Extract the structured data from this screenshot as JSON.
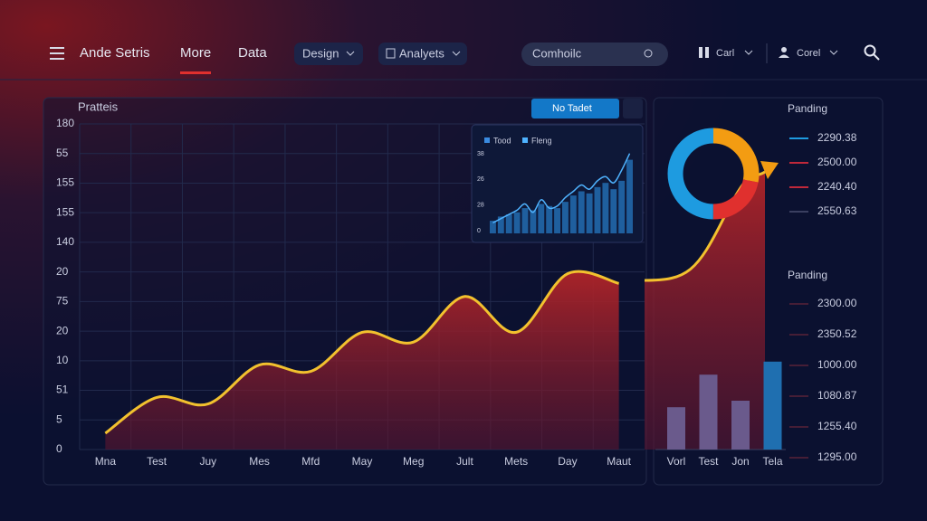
{
  "nav": {
    "brand": "Ande Setris",
    "items": [
      "More",
      "Data"
    ],
    "dropdowns": [
      "Design",
      "Analyets"
    ],
    "search": "Comhoilc",
    "menus": [
      "Carl",
      "Corel"
    ]
  },
  "main_panel": {
    "title": "Pratteis",
    "button": "No Tadet",
    "chart_data": {
      "type": "line",
      "categories": [
        "Mna",
        "Test",
        "Juy",
        "Mes",
        "Mfd",
        "May",
        "Meg",
        "Jult",
        "Mets",
        "Day",
        "Maut"
      ],
      "values": [
        5,
        16,
        14,
        26,
        24,
        36,
        33,
        47,
        36,
        54,
        51
      ],
      "color": "#f2c12e",
      "area_color": "#b02428",
      "ylim": [
        0,
        100
      ],
      "y_labels": [
        "180",
        "55",
        "155",
        "155",
        "140",
        "20",
        "75",
        "20",
        "10",
        "51",
        "5",
        "0"
      ]
    }
  },
  "inset": {
    "legend": [
      "Tood",
      "Fleng"
    ],
    "y_labels": [
      "38",
      "26",
      "28",
      "0"
    ],
    "chart_data": {
      "type": "bar",
      "ylim": [
        0,
        40
      ],
      "series": [
        {
          "name": "Tood",
          "color": "#1f5f9e",
          "values": [
            6,
            8,
            9,
            10,
            12,
            11,
            14,
            13,
            12,
            15,
            18,
            20,
            19,
            22,
            24,
            21,
            25,
            35
          ]
        },
        {
          "name": "Fleng",
          "color": "#4fb3ff",
          "values": [
            5,
            7,
            9,
            11,
            14,
            10,
            16,
            12,
            13,
            17,
            20,
            23,
            21,
            25,
            27,
            24,
            30,
            38
          ]
        }
      ]
    }
  },
  "side_panel": {
    "donut": {
      "type": "pie",
      "values": [
        28,
        22,
        50
      ],
      "colors": [
        "#f39c12",
        "#e0302e",
        "#1e9be0"
      ]
    },
    "list1_title": "Panding",
    "list1": [
      "2290.38",
      "2500.00",
      "2240.40",
      "2550.63"
    ],
    "list2_title": "Panding",
    "list2": [
      "2300.00",
      "2350.52",
      "1000.00",
      "1080.87",
      "1255.40",
      "1295.00"
    ],
    "bars": {
      "type": "bar",
      "categories": [
        "Vorl",
        "Test",
        "Jon",
        "Tela"
      ],
      "values": [
        13,
        23,
        15,
        27
      ],
      "colors": [
        "#6a5a8c",
        "#6a5a8c",
        "#6a5a8c",
        "#1f6fb0"
      ],
      "ylim": [
        0,
        100
      ]
    }
  }
}
